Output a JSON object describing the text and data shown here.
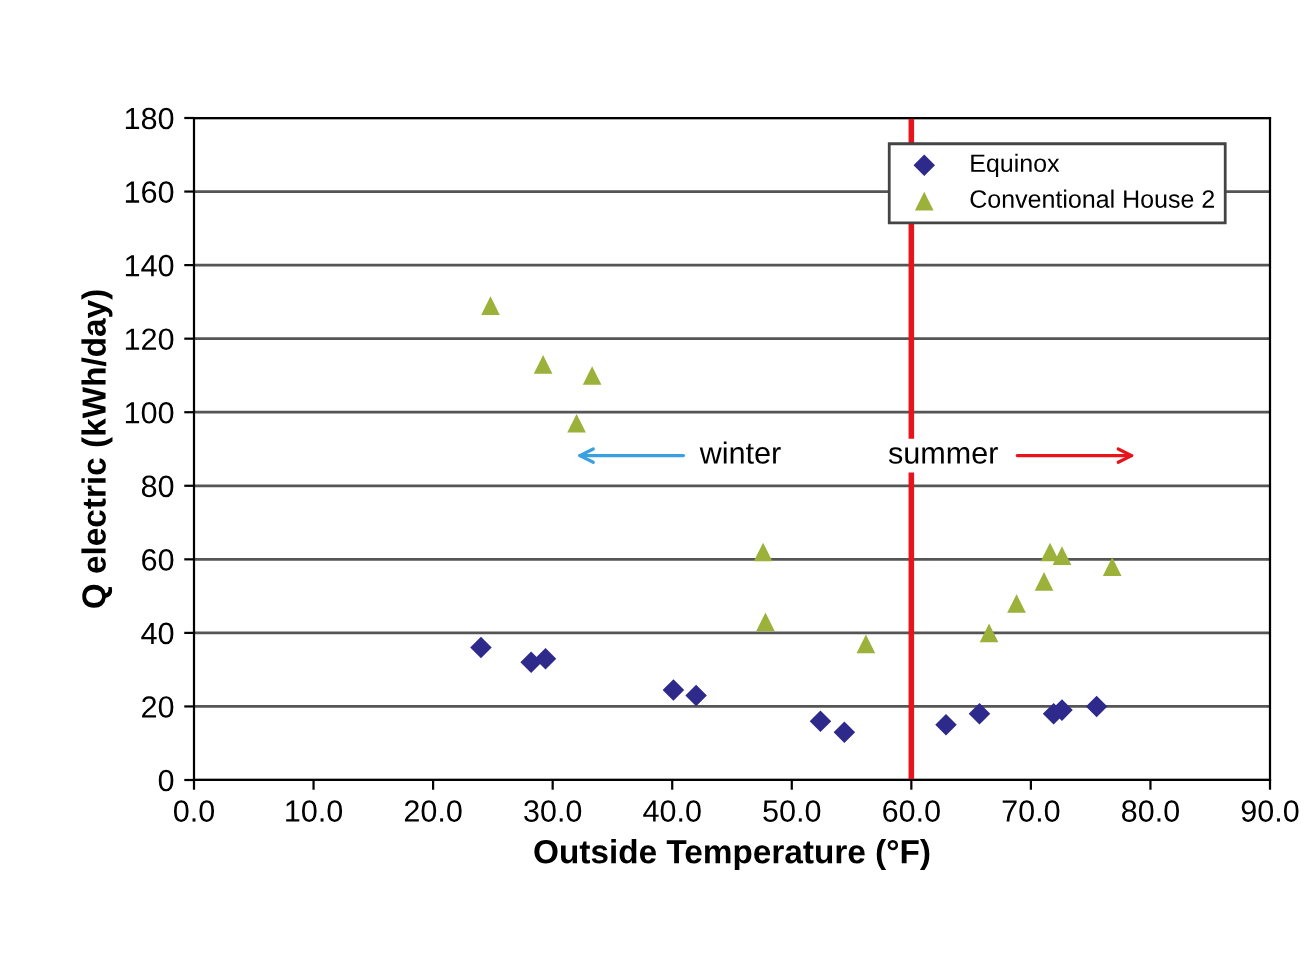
{
  "chart_data": {
    "type": "scatter",
    "xlabel": "Outside Temperature (°F)",
    "ylabel": "Q electric (kWh/day)",
    "xlim": [
      0,
      90
    ],
    "xticks": [
      {
        "value": 0,
        "label": "0.0"
      },
      {
        "value": 10,
        "label": "10.0"
      },
      {
        "value": 20,
        "label": "20.0"
      },
      {
        "value": 30,
        "label": "30.0"
      },
      {
        "value": 40,
        "label": "40.0"
      },
      {
        "value": 50,
        "label": "50.0"
      },
      {
        "value": 60,
        "label": "60.0"
      },
      {
        "value": 70,
        "label": "70.0"
      },
      {
        "value": 80,
        "label": "80.0"
      },
      {
        "value": 90,
        "label": "90.0"
      }
    ],
    "ylim": [
      0,
      180
    ],
    "yticks": [
      0,
      20,
      40,
      60,
      80,
      100,
      120,
      140,
      160,
      180
    ],
    "grid": "y",
    "legend": "top right",
    "series": [
      {
        "name": "Equinox",
        "color": "#2e2a8c",
        "marker": "diamond",
        "x": [
          24.0,
          28.2,
          29.4,
          40.1,
          42.0,
          52.4,
          54.4,
          62.9,
          65.7,
          71.9,
          72.6,
          75.5
        ],
        "values": [
          36,
          32,
          33,
          24.5,
          23,
          16,
          13,
          15,
          18,
          18,
          19,
          20
        ]
      },
      {
        "name": "Conventional House 2",
        "color": "#9bb13a",
        "marker": "triangle",
        "x": [
          24.8,
          29.2,
          32.0,
          33.3,
          47.6,
          47.8,
          56.2,
          66.5,
          68.8,
          71.1,
          71.6,
          72.6,
          76.8
        ],
        "values": [
          129,
          113,
          97,
          110,
          62,
          43,
          37,
          40,
          48,
          54,
          62,
          61,
          58
        ]
      }
    ],
    "ref_lines": [
      {
        "axis": "x",
        "value": 60,
        "color": "#e8141c"
      }
    ],
    "annotations": [
      "winter",
      "summer"
    ]
  }
}
